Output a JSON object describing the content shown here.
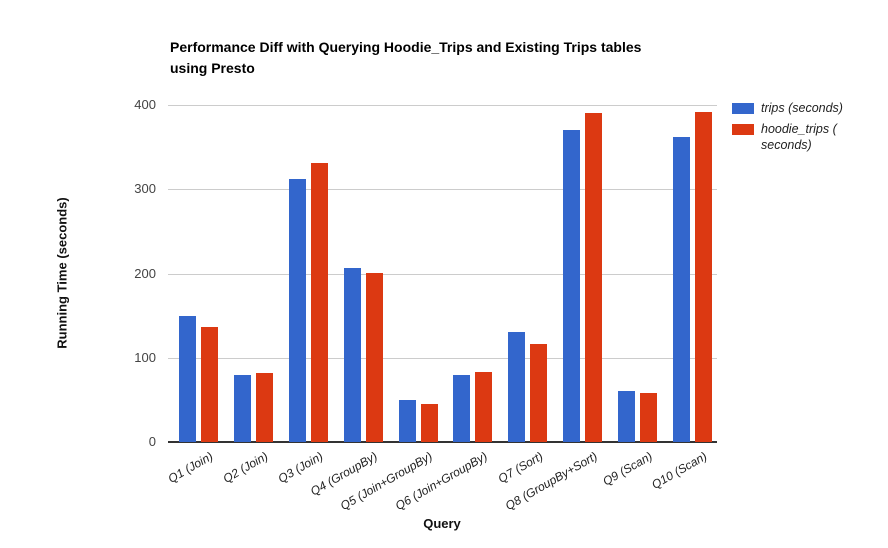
{
  "header": {
    "line1": "Performance Diff with Querying Hoodie_Trips and Existing Trips tables",
    "line2": "using Presto"
  },
  "chart_data": {
    "type": "bar",
    "title": "Performance Diff with Querying Hoodie_Trips and Existing Trips tables using Presto",
    "xlabel": "Query",
    "ylabel": "Running Time (seconds)",
    "ylim": [
      0,
      400
    ],
    "yticks": [
      0,
      100,
      200,
      300,
      400
    ],
    "grid": true,
    "legend_position": "right",
    "categories": [
      "Q1 (Join)",
      "Q2 (Join)",
      "Q3 (Join)",
      "Q4 (GroupBy)",
      "Q5 (Join+GroupBy)",
      "Q6 (Join+GroupBy)",
      "Q7 (Sort)",
      "Q8 (GroupBy+Sort)",
      "Q9 (Scan)",
      "Q10 (Scan)"
    ],
    "series": [
      {
        "name": "trips (seconds)",
        "legend_lines": [
          "trips (seconds)"
        ],
        "color": "#3366cc",
        "values": [
          150,
          80,
          312,
          207,
          50,
          80,
          130,
          370,
          60,
          362
        ]
      },
      {
        "name": "hoodie_trips (seconds)",
        "legend_lines": [
          "hoodie_trips (",
          "seconds)"
        ],
        "color": "#dc3912",
        "values": [
          137,
          82,
          331,
          201,
          45,
          83,
          116,
          390,
          58,
          392
        ]
      }
    ]
  }
}
